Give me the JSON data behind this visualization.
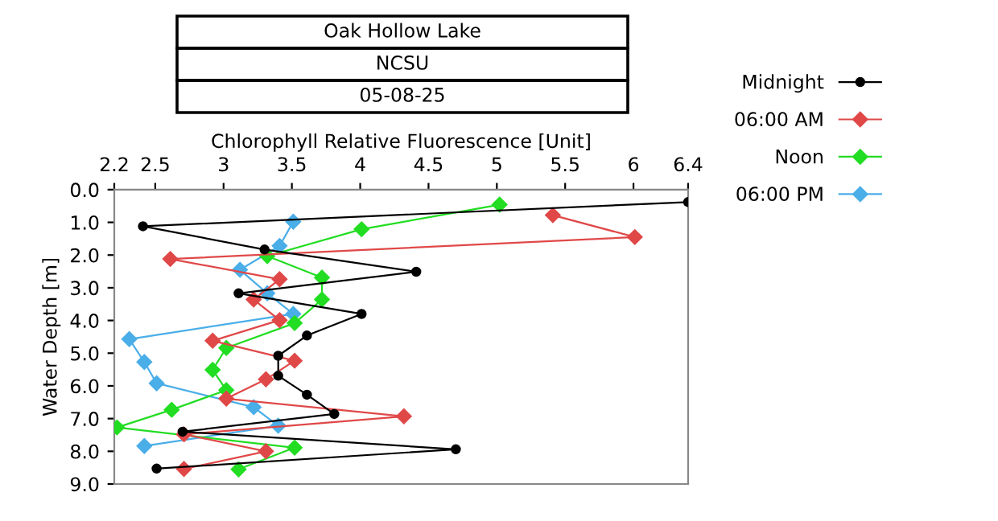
{
  "chart_data": {
    "type": "line",
    "title": "Oak Hollow Lake",
    "subtitle": "NCSU",
    "annotations": [
      "05-08-25"
    ],
    "xlabel": "Chlorophyll Relative Fluorescence [Unit]",
    "ylabel": "Water Depth [m]",
    "xlim": [
      2.2,
      6.4
    ],
    "xticks": [
      2.2,
      2.5,
      3,
      3.5,
      4,
      4.5,
      5,
      5.5,
      6,
      6.4
    ],
    "ylim": [
      9,
      0
    ],
    "yticks": [
      {
        "value": 0,
        "label": "0.0"
      },
      {
        "value": 1,
        "label": "1.0"
      },
      {
        "value": 2,
        "label": "2.0"
      },
      {
        "value": 3,
        "label": "3.0"
      },
      {
        "value": 4,
        "label": "4.0"
      },
      {
        "value": 5,
        "label": "5.0"
      },
      {
        "value": 6,
        "label": "6.0"
      },
      {
        "value": 7,
        "label": "7.0"
      },
      {
        "value": 8,
        "label": "8.0"
      },
      {
        "value": 9,
        "label": "9.0"
      }
    ],
    "grid": false,
    "legend": "right",
    "line_style": "solid",
    "series": [
      {
        "name": "Midnight",
        "color": "#000000",
        "marker": "circle",
        "x": [
          6.4,
          2.41,
          3.3,
          4.41,
          3.11,
          4.01,
          3.61,
          3.4,
          3.4,
          3.61,
          3.81,
          2.7,
          4.7,
          2.51
        ],
        "values": [
          0.38,
          1.12,
          1.83,
          2.51,
          3.17,
          3.8,
          4.46,
          5.08,
          5.69,
          6.27,
          6.86,
          7.4,
          7.94,
          8.53
        ]
      },
      {
        "name": "06:00 AM",
        "color": "#e04848",
        "marker": "diamond",
        "x": [
          5.41,
          6.01,
          2.61,
          3.41,
          3.22,
          3.41,
          2.92,
          3.52,
          3.31,
          3.02,
          4.32,
          2.71,
          3.31,
          2.71
        ],
        "values": [
          0.78,
          1.45,
          2.12,
          2.74,
          3.36,
          3.99,
          4.62,
          5.23,
          5.8,
          6.39,
          6.93,
          7.48,
          8.0,
          8.54
        ]
      },
      {
        "name": "Noon",
        "color": "#22dd22",
        "marker": "diamond",
        "x": [
          5.02,
          4.01,
          3.32,
          3.72,
          3.72,
          3.52,
          3.02,
          2.92,
          3.02,
          2.62,
          2.22,
          3.52,
          3.11
        ],
        "values": [
          0.46,
          1.21,
          2.03,
          2.69,
          3.36,
          4.08,
          4.84,
          5.51,
          6.13,
          6.73,
          7.27,
          7.89,
          8.55
        ]
      },
      {
        "name": "06:00 PM",
        "color": "#4aaee8",
        "marker": "diamond",
        "x": [
          3.51,
          3.41,
          3.12,
          3.32,
          3.51,
          2.31,
          2.42,
          2.51,
          3.22,
          3.4,
          2.42
        ],
        "values": [
          0.98,
          1.72,
          2.45,
          3.17,
          3.8,
          4.57,
          5.27,
          5.92,
          6.65,
          7.22,
          7.84
        ]
      }
    ]
  }
}
